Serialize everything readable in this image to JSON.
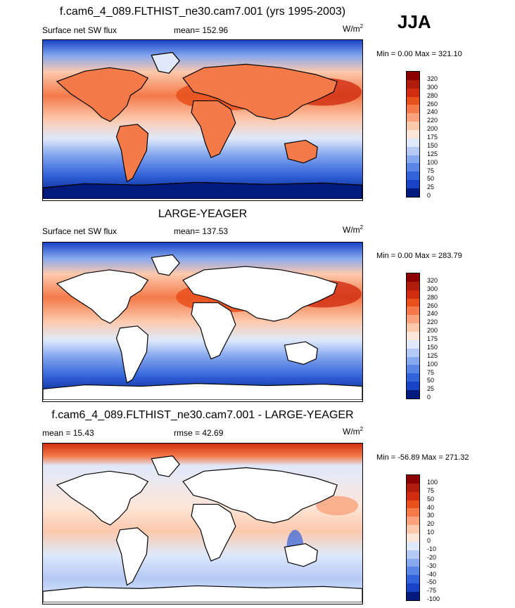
{
  "season": "JJA",
  "panels": [
    {
      "title": "f.cam6_4_089.FLTHIST_ne30.cam7.001 (yrs 1995-2003)",
      "left": "Surface net SW flux",
      "center": "mean= 152.96",
      "units": "W/m",
      "units_sup": "2",
      "minmax": "Min =   0.00 Max = 321.10"
    },
    {
      "title": "LARGE-YEAGER",
      "left": "Surface net SW flux",
      "center": "mean= 137.53",
      "units": "W/m",
      "units_sup": "2",
      "minmax": "Min =   0.00 Max = 283.79"
    },
    {
      "title": "f.cam6_4_089.FLTHIST_ne30.cam7.001 - LARGE-YEAGER",
      "left": "mean =  15.43",
      "center": "rmse =  42.69",
      "units": "W/m",
      "units_sup": "2",
      "minmax": "Min = -56.89 Max = 271.32"
    }
  ],
  "chart_data": [
    {
      "type": "heatmap",
      "title": "f.cam6_4_089.FLTHIST_ne30.cam7.001 (yrs 1995-2003)",
      "variable": "Surface net SW flux",
      "units": "W/m2",
      "mean": 152.96,
      "min": 0.0,
      "max": 321.1,
      "colorbar_levels": [
        "320",
        "300",
        "280",
        "260",
        "240",
        "220",
        "200",
        "175",
        "150",
        "125",
        "100",
        "75",
        "50",
        "25",
        "0"
      ],
      "colorbar_colors": [
        "#8b0000",
        "#b01d0c",
        "#d02d10",
        "#e8501c",
        "#f47a4a",
        "#f9a27c",
        "#fcc9ac",
        "#fde6d8",
        "#dfe9fb",
        "#b4c9f5",
        "#86a8ee",
        "#5a86e6",
        "#3263da",
        "#1743c4",
        "#001a7d"
      ]
    },
    {
      "type": "heatmap",
      "title": "LARGE-YEAGER",
      "variable": "Surface net SW flux",
      "units": "W/m2",
      "mean": 137.53,
      "min": 0.0,
      "max": 283.79,
      "colorbar_levels": [
        "320",
        "300",
        "280",
        "260",
        "240",
        "220",
        "200",
        "175",
        "150",
        "125",
        "100",
        "75",
        "50",
        "25",
        "0"
      ],
      "colorbar_colors": [
        "#8b0000",
        "#b01d0c",
        "#d02d10",
        "#e8501c",
        "#f47a4a",
        "#f9a27c",
        "#fcc9ac",
        "#fde6d8",
        "#dfe9fb",
        "#b4c9f5",
        "#86a8ee",
        "#5a86e6",
        "#3263da",
        "#1743c4",
        "#001a7d"
      ]
    },
    {
      "type": "heatmap",
      "title": "f.cam6_4_089.FLTHIST_ne30.cam7.001 - LARGE-YEAGER",
      "units": "W/m2",
      "mean": 15.43,
      "rmse": 42.69,
      "min": -56.89,
      "max": 271.32,
      "colorbar_levels": [
        "100",
        "75",
        "50",
        "40",
        "30",
        "20",
        "10",
        "0",
        "-10",
        "-20",
        "-30",
        "-40",
        "-50",
        "-75",
        "-100"
      ],
      "colorbar_colors": [
        "#8b0000",
        "#b01d0c",
        "#d02d10",
        "#e8501c",
        "#f47a4a",
        "#f9a27c",
        "#fcc9ac",
        "#fde6d8",
        "#dfe9fb",
        "#b4c9f5",
        "#86a8ee",
        "#5a86e6",
        "#3263da",
        "#1743c4",
        "#001a7d"
      ]
    }
  ]
}
